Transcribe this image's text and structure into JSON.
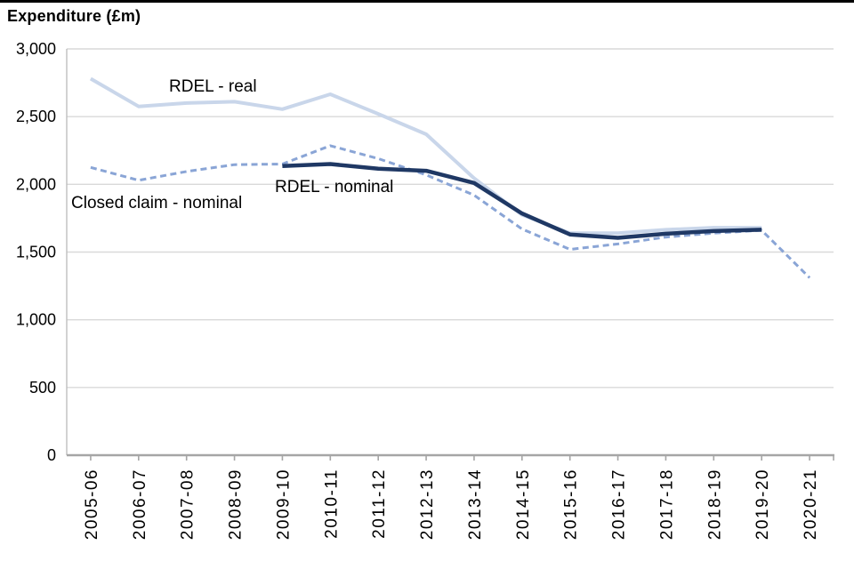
{
  "chart_data": {
    "type": "line",
    "title": "Expenditure (£m)",
    "xlabel": "",
    "ylabel": "Expenditure (£m)",
    "grid": true,
    "legend_position": "inline-annotations",
    "x_axis": {
      "categories": [
        "2005-06",
        "2006-07",
        "2007-08",
        "2008-09",
        "2009-10",
        "2010-11",
        "2011-12",
        "2012-13",
        "2013-14",
        "2014-15",
        "2015-16",
        "2016-17",
        "2017-18",
        "2018-19",
        "2019-20",
        "2020-21"
      ],
      "label_rotation": -90
    },
    "y_axis": {
      "min": 0,
      "max": 3000,
      "tick_interval": 500,
      "tick_labels": [
        "0",
        "500",
        "1,000",
        "1,500",
        "2,000",
        "2,500",
        "3,000"
      ]
    },
    "series": [
      {
        "id": "rdel-real",
        "name": "RDEL - real",
        "color": "#C9D6EA",
        "dash": "solid",
        "width": 4,
        "values": [
          2780,
          2575,
          2600,
          2610,
          2555,
          2665,
          2520,
          2370,
          2045,
          1775,
          1640,
          1640,
          1665,
          1680,
          1680,
          null
        ]
      },
      {
        "id": "closed-claim-nominal",
        "name": "Closed claim - nominal",
        "color": "#8AA5D6",
        "dash": "dashed",
        "width": 3,
        "values": [
          2125,
          2030,
          2095,
          2145,
          2150,
          2285,
          2190,
          2070,
          1920,
          1670,
          1520,
          1560,
          1610,
          1640,
          1660,
          1310
        ]
      },
      {
        "id": "rdel-nominal",
        "name": "RDEL - nominal",
        "color": "#1F3864",
        "dash": "solid",
        "width": 4.5,
        "values": [
          null,
          null,
          null,
          null,
          2135,
          2150,
          2115,
          2100,
          2010,
          1785,
          1630,
          1605,
          1635,
          1655,
          1665,
          null
        ]
      }
    ],
    "annotations": [
      {
        "text": "RDEL - real",
        "x": 190,
        "y": 87
      },
      {
        "text": "RDEL - nominal",
        "x": 309,
        "y": 200
      },
      {
        "text": "Closed claim - nominal",
        "x": 80,
        "y": 218
      }
    ],
    "style": {
      "gridline_color": "#D9D9D9",
      "axis_color": "#A6A6A6",
      "plot_border_color": "#BFBFBF",
      "top_border_color": "#000000",
      "text_color": "#000000"
    }
  }
}
